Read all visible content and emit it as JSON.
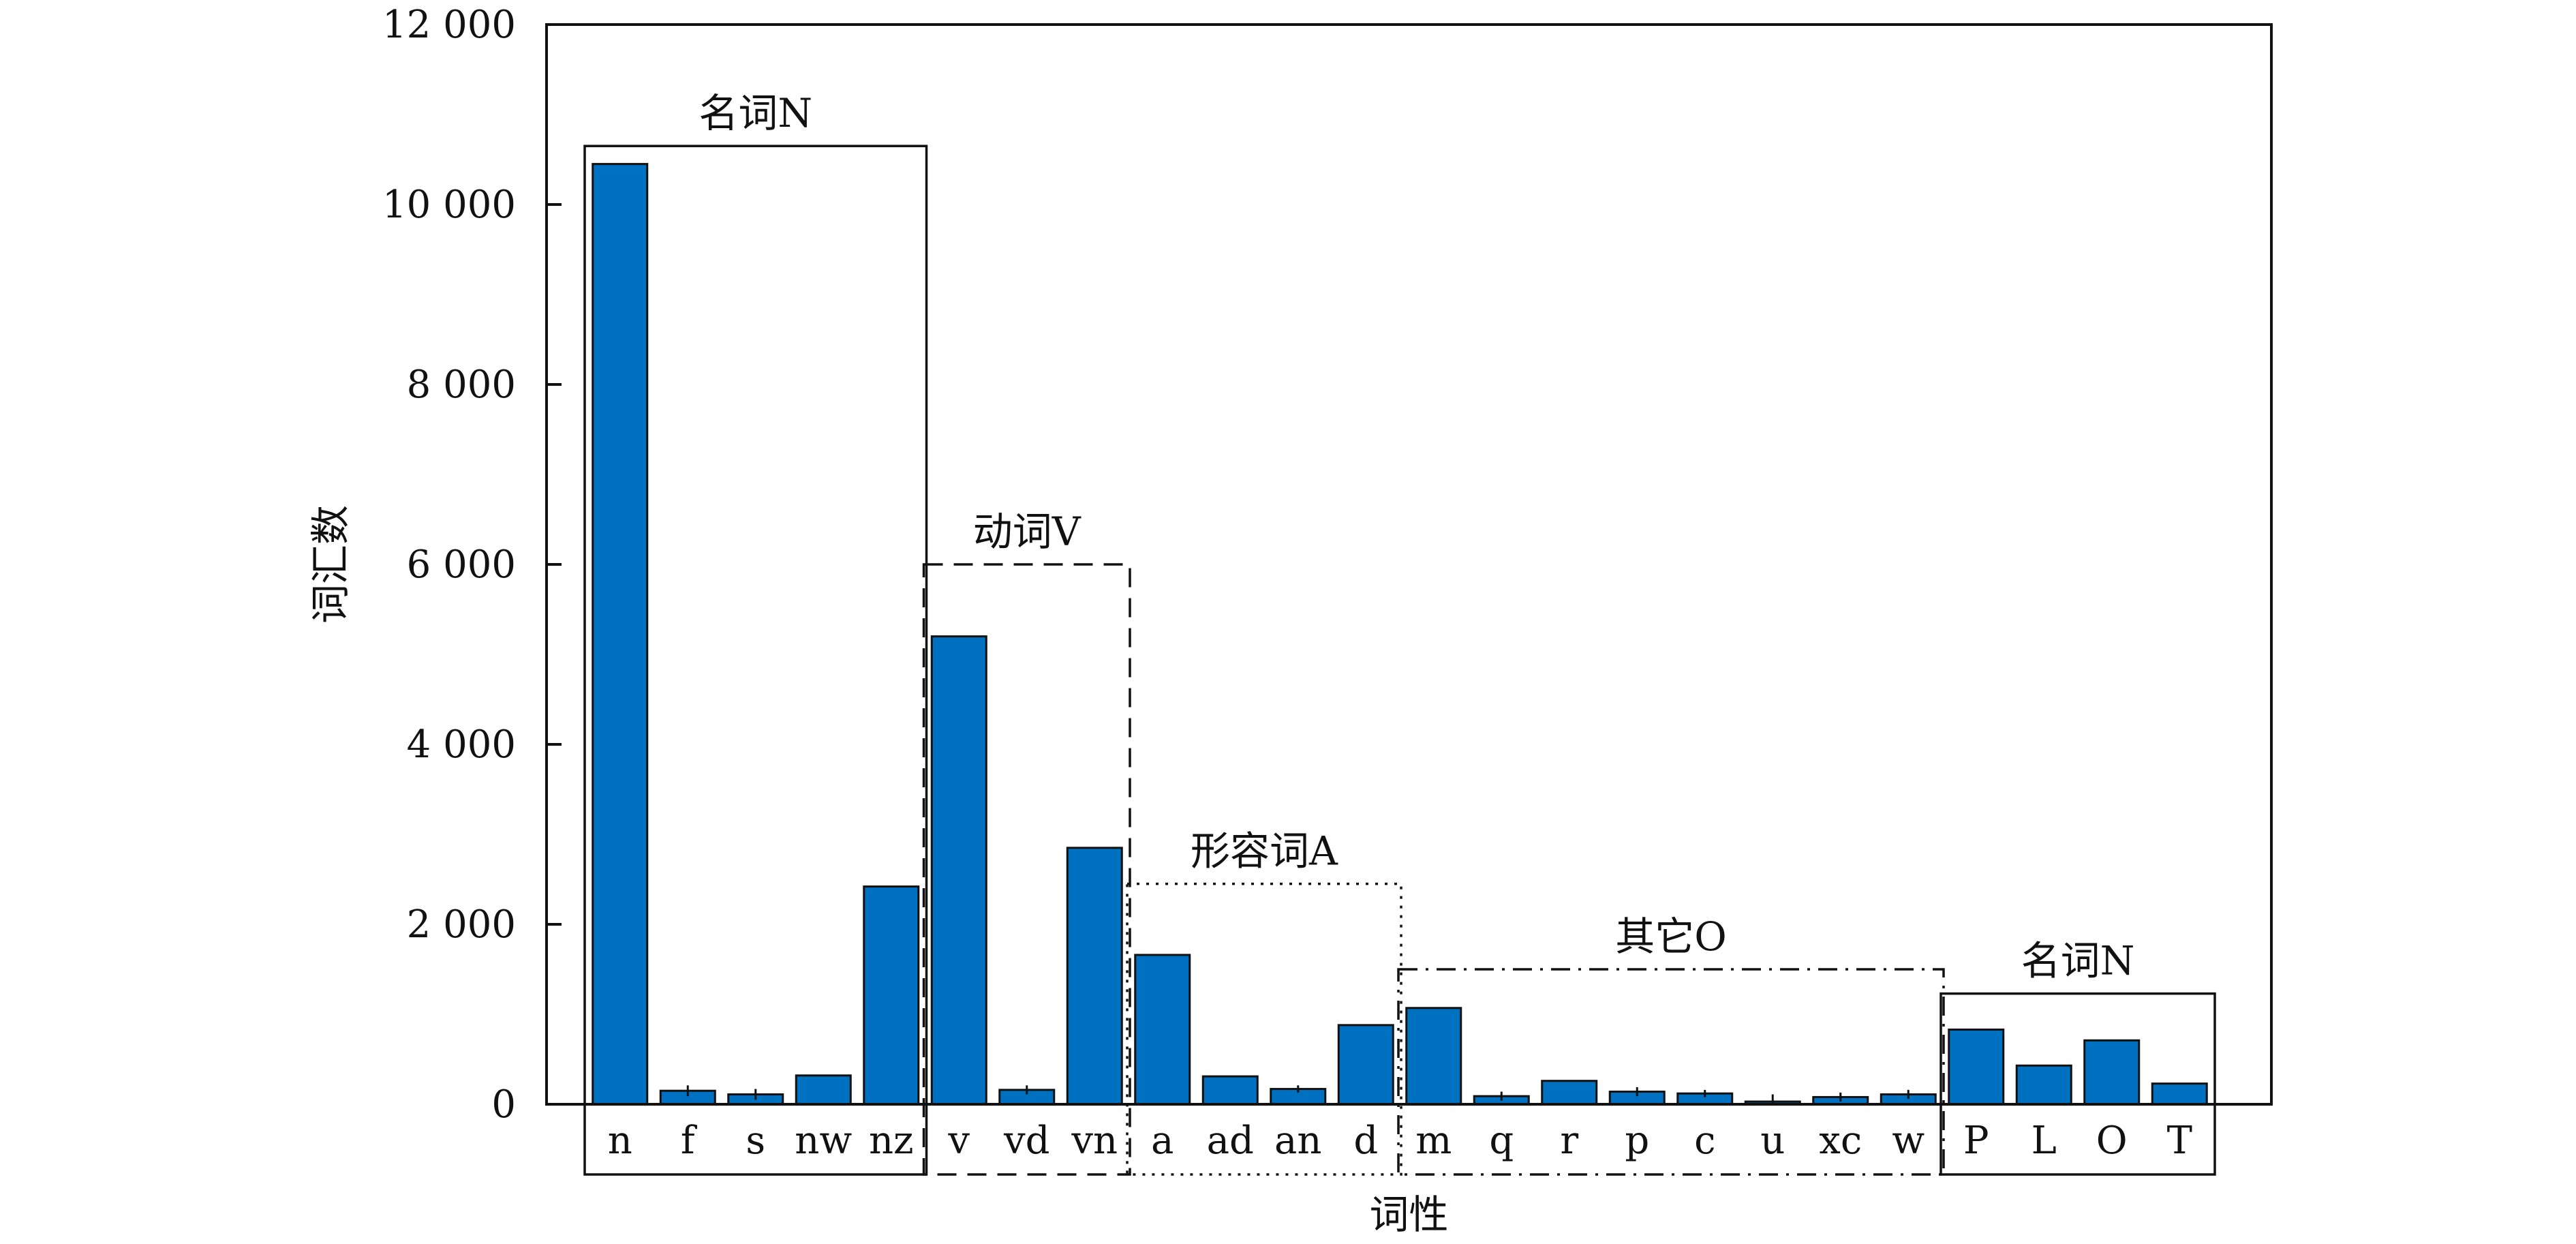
{
  "chart_data": {
    "type": "bar",
    "xlabel": "词性",
    "ylabel": "词汇数",
    "ylim": [
      0,
      12000
    ],
    "yticks": [
      0,
      2000,
      4000,
      6000,
      8000,
      10000,
      12000
    ],
    "ytick_labels": [
      "0",
      "2 000",
      "4 000",
      "6 000",
      "8 000",
      "10 000",
      "12 000"
    ],
    "categories": [
      "n",
      "f",
      "s",
      "nw",
      "nz",
      "v",
      "vd",
      "vn",
      "a",
      "ad",
      "an",
      "d",
      "m",
      "q",
      "r",
      "p",
      "c",
      "u",
      "xc",
      "w",
      "P",
      "L",
      "O",
      "T"
    ],
    "values": [
      10450,
      150,
      110,
      320,
      2420,
      5200,
      160,
      2850,
      1660,
      310,
      170,
      880,
      1070,
      90,
      260,
      140,
      120,
      30,
      80,
      110,
      830,
      430,
      710,
      230
    ],
    "errors": [
      0,
      60,
      60,
      0,
      0,
      0,
      50,
      0,
      0,
      0,
      40,
      0,
      0,
      50,
      0,
      50,
      40,
      80,
      50,
      50,
      0,
      0,
      0,
      0
    ],
    "groups": [
      {
        "label": "名词N",
        "start": 0,
        "end": 4,
        "box_top_value": 10650,
        "style": "solid"
      },
      {
        "label": "动词V",
        "start": 5,
        "end": 7,
        "box_top_value": 6000,
        "style": "dashed"
      },
      {
        "label": "形容词A",
        "start": 8,
        "end": 11,
        "box_top_value": 2450,
        "style": "dotted"
      },
      {
        "label": "其它O",
        "start": 12,
        "end": 19,
        "box_top_value": 1500,
        "style": "dashdot"
      },
      {
        "label": "名词N",
        "start": 20,
        "end": 23,
        "box_top_value": 1230,
        "style": "solid"
      }
    ],
    "colors": {
      "bar": "#0070C0",
      "outline": "#111111"
    },
    "grid": false,
    "legend": "none"
  }
}
